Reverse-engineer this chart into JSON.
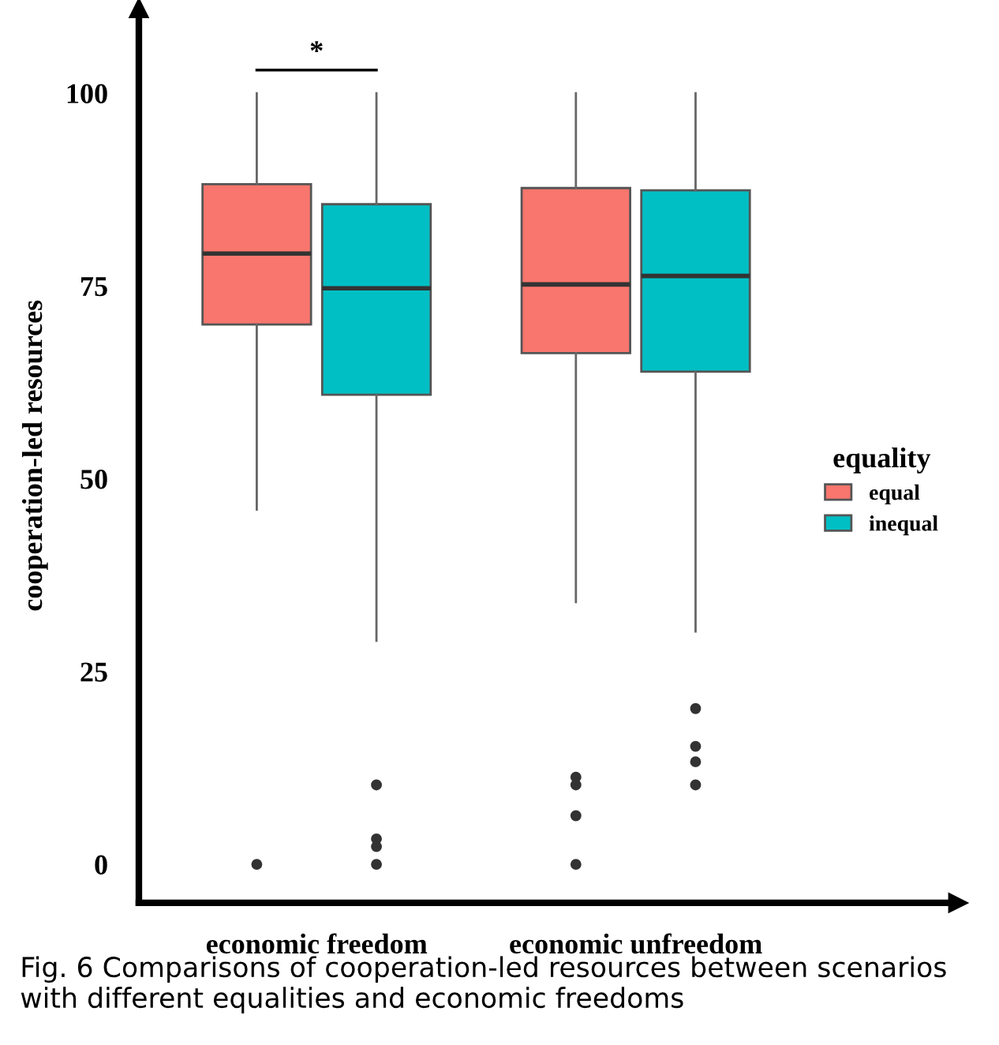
{
  "chart_data": {
    "type": "box",
    "ylabel": "cooperation-led resources",
    "legend_title": "equality",
    "legend": "right",
    "categories": [
      "economic freedom",
      "economic unfreedom"
    ],
    "ylim": [
      -5,
      111
    ],
    "yticks": [
      0,
      25,
      50,
      75,
      100
    ],
    "grid": false,
    "series": [
      {
        "name": "equal",
        "color": "#f8766d",
        "boxes": [
          {
            "low": 46,
            "q1": 70,
            "median": 79.2,
            "q3": 88.2,
            "high": 100,
            "outliers": [
              0
            ]
          },
          {
            "low": 34,
            "q1": 66.3,
            "median": 75.2,
            "q3": 87.7,
            "high": 100,
            "outliers": [
              0,
              6.3,
              10.3,
              11.3
            ]
          }
        ]
      },
      {
        "name": "inequal",
        "color": "#00bfc4",
        "boxes": [
          {
            "low": 29,
            "q1": 60.9,
            "median": 74.7,
            "q3": 85.6,
            "high": 100,
            "outliers": [
              0,
              2.3,
              3.3,
              10.3
            ]
          },
          {
            "low": 30.2,
            "q1": 63.9,
            "median": 76.3,
            "q3": 87.4,
            "high": 100,
            "outliers": [
              10.3,
              13.3,
              15.3,
              20.2
            ]
          }
        ]
      }
    ],
    "annotations": [
      "*",
      "Fig. 6 Comparisons of cooperation-led resources between scenarios with different equalities and economic freedoms"
    ]
  }
}
